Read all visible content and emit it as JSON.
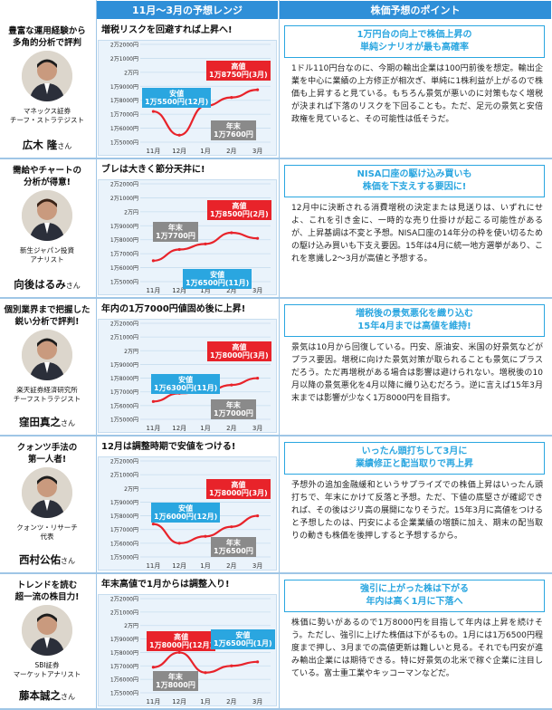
{
  "header": {
    "chart_col": "11月～3月の予想レンジ",
    "text_col": "株価予想のポイント"
  },
  "rows": [
    {
      "intro": "豊富な運用経験から\n多角的分析で評判",
      "org": "マネックス証券\nチーフ・ストラテジスト",
      "name": "広木 隆",
      "honor": "さん",
      "chart_title": "増税リスクを回避すれば上昇へ!",
      "high": "高値\n1万8750円(3月)",
      "low": "安値\n1万5500円(12月)",
      "yearend": "年末\n1万7600円",
      "point_head": "1万円台の向上で株価上昇の\n単純シナリオが最も高確率",
      "point_body": "1ドル110円台なのに、今期の輸出企業は100円前後を想定。輸出企業を中心に業績の上方修正が相次ぎ、単純に1株利益が上がるので株価も上昇すると見ている。もちろん景気が悪いのに対策もなく増税が決まれば下落のリスクを下回ることも。ただ、足元の景気と安倍政権を見ていると、その可能性は低そうだ。"
    },
    {
      "intro": "需給やチャートの\n分析が得意!",
      "org": "新生ジャパン投資\nアナリスト",
      "name": "向後はるみ",
      "honor": "さん",
      "chart_title": "ブレは大きく節分天井に!",
      "high": "高値\n1万8500円(2月)",
      "low": "安値\n1万6500円(11月)",
      "yearend": "年末\n1万7700円",
      "point_head": "NISA口座の駆け込み買いも\n株価を下支えする要因に!",
      "point_body": "12月中に決断される消費増税の決定または見送りは、いずれにせよ、これを引き金に、一時的な売り仕掛けが起こる可能性があるが、上昇基調は不変と予想。NISA口座の14年分の枠を使い切るための駆け込み買いも下支え要因。15年は4月に統一地方選挙があり、これを意識し2～3月が高値と予想する。"
    },
    {
      "intro": "個別業界まで把握した\n鋭い分析で評判!",
      "org": "楽天証券経済研究所\nチーフストラテジスト",
      "name": "窪田真之",
      "honor": "さん",
      "chart_title": "年内の1万7000円値固め後に上昇!",
      "high": "高値\n1万8000円(3月)",
      "low": "安値\n1万6300円(11月)",
      "yearend": "年末\n1万7000円",
      "point_head": "増税後の景気悪化を織り込む\n15年4月までは高値を維持!",
      "point_body": "景気は10月から回復している。円安、原油安、米国の好景気などがプラス要因。増税に向けた景気対策が取られることも景気にプラスだろう。ただ再増税がある場合は影響は避けられない。増税後の10月以降の景気悪化を4月以降に織り込むだろう。逆に言えば15年3月末までは影響が少なく1万8000円を目指す。"
    },
    {
      "intro": "クォンツ手法の\n第一人者!",
      "org": "クォンツ・リサーチ\n代表",
      "name": "西村公佑",
      "honor": "さん",
      "chart_title": "12月は調整時期で安値をつける!",
      "high": "高値\n1万8000円(3月)",
      "low": "安値\n1万6000円(12月)",
      "yearend": "年末\n1万6500円",
      "point_head": "いったん頭打ちして3月に\n業績修正と配当取りで再上昇",
      "point_body": "予想外の追加金融緩和というサプライズでの株価上昇はいったん頭打ちで、年末にかけて反落と予想。ただ、下値の底堅さが確認できれば、その後はジリ高の展開になりそうだ。15年3月に高値をつけると予想したのは、円安による企業業績の増額に加え、期末の配当取りの動きも株価を後押しすると予想するから。"
    },
    {
      "intro": "トレンドを読む\n超一流の株目力!",
      "org": "SBI証券\nマーケットアナリスト",
      "name": "藤本誠之",
      "honor": "さん",
      "chart_title": "年末高値で1月からは調整入り!",
      "high": "高値\n1万8000円(12月)",
      "low": "安値\n1万6500円(1月)",
      "yearend": "年末\n1万8000円",
      "point_head": "強引に上がった株は下がる\n年内は高く1月に下落へ",
      "point_body": "株価に勢いがあるので1万8000円を目指して年内は上昇を続けそう。ただし、強引に上げた株価は下がるもの。1月には1万6500円程度まで押し、3月までの高値更新は難しいと見る。それでも円安が進み輸出企業には期待できる。特に好景気の北米で稼ぐ企業に注目している。富士重工業やキッコーマンなどだ。"
    }
  ],
  "axis": {
    "ticks": [
      "2万2000円",
      "2万1000円",
      "2万円",
      "1万9000円",
      "1万8000円",
      "1万7000円",
      "1万6000円",
      "1万5000円"
    ],
    "months": [
      "11月",
      "12月",
      "1月",
      "2月",
      "3月"
    ]
  },
  "chart_data": [
    {
      "type": "line",
      "ylim": [
        15000,
        22000
      ],
      "categories": [
        "11月",
        "12月",
        "1月",
        "2月",
        "3月"
      ],
      "values": [
        17200,
        15500,
        17600,
        18200,
        18750
      ]
    },
    {
      "type": "line",
      "ylim": [
        15000,
        22000
      ],
      "categories": [
        "11月",
        "12月",
        "1月",
        "2月",
        "3月"
      ],
      "values": [
        16500,
        17300,
        17700,
        18500,
        18100
      ]
    },
    {
      "type": "line",
      "ylim": [
        15000,
        22000
      ],
      "categories": [
        "11月",
        "12月",
        "1月",
        "2月",
        "3月"
      ],
      "values": [
        16300,
        16900,
        17000,
        17500,
        18000
      ]
    },
    {
      "type": "line",
      "ylim": [
        15000,
        22000
      ],
      "categories": [
        "11月",
        "12月",
        "1月",
        "2月",
        "3月"
      ],
      "values": [
        17400,
        16000,
        16500,
        17200,
        18000
      ]
    },
    {
      "type": "line",
      "ylim": [
        15000,
        22000
      ],
      "categories": [
        "11月",
        "12月",
        "1月",
        "2月",
        "3月"
      ],
      "values": [
        16900,
        18000,
        16500,
        17000,
        17300
      ]
    }
  ],
  "colors": {
    "accent": "#2aa6e0",
    "high": "#e8232a",
    "yearend": "#8a8a8a",
    "panel": "#eaf3fb",
    "header": "#2f8fd8"
  }
}
